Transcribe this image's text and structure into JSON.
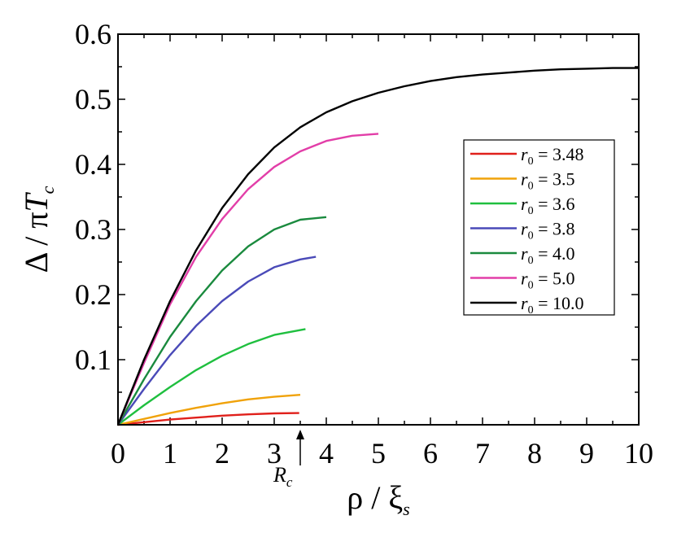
{
  "chart_data": {
    "type": "line",
    "xlabel": "ρ / ξs",
    "ylabel": "Δ / πTc",
    "xlim": [
      0,
      10
    ],
    "ylim": [
      0,
      0.6
    ],
    "x_ticks": [
      "0",
      "1",
      "2",
      "3",
      "4",
      "5",
      "6",
      "7",
      "8",
      "9",
      "10"
    ],
    "y_ticks": [
      "0.1",
      "0.2",
      "0.3",
      "0.4",
      "0.5",
      "0.6"
    ],
    "grid": false,
    "legend_position": "right",
    "annotation": {
      "text": "Rc",
      "x": 3.5
    },
    "series": [
      {
        "name": "r0 = 3.48",
        "color": "#e0201b",
        "points": [
          [
            0,
            0
          ],
          [
            0.5,
            0.004
          ],
          [
            1,
            0.008
          ],
          [
            1.5,
            0.011
          ],
          [
            2,
            0.014
          ],
          [
            2.5,
            0.016
          ],
          [
            3,
            0.0175
          ],
          [
            3.48,
            0.018
          ]
        ]
      },
      {
        "name": "r0 = 3.5",
        "color": "#f0a20a",
        "points": [
          [
            0,
            0
          ],
          [
            0.5,
            0.009
          ],
          [
            1,
            0.018
          ],
          [
            1.5,
            0.026
          ],
          [
            2,
            0.033
          ],
          [
            2.5,
            0.039
          ],
          [
            3,
            0.043
          ],
          [
            3.5,
            0.046
          ]
        ]
      },
      {
        "name": "r0 = 3.6",
        "color": "#1fbf3f",
        "points": [
          [
            0,
            0
          ],
          [
            0.5,
            0.03
          ],
          [
            1,
            0.058
          ],
          [
            1.5,
            0.084
          ],
          [
            2,
            0.106
          ],
          [
            2.5,
            0.124
          ],
          [
            3,
            0.138
          ],
          [
            3.6,
            0.147
          ]
        ]
      },
      {
        "name": "r0 = 3.8",
        "color": "#4a4ab8",
        "points": [
          [
            0,
            0
          ],
          [
            0.5,
            0.055
          ],
          [
            1,
            0.107
          ],
          [
            1.5,
            0.152
          ],
          [
            2,
            0.19
          ],
          [
            2.5,
            0.22
          ],
          [
            3,
            0.242
          ],
          [
            3.5,
            0.254
          ],
          [
            3.8,
            0.258
          ]
        ]
      },
      {
        "name": "r0 = 4.0",
        "color": "#1a8a3e",
        "points": [
          [
            0,
            0
          ],
          [
            0.5,
            0.07
          ],
          [
            1,
            0.135
          ],
          [
            1.5,
            0.19
          ],
          [
            2,
            0.237
          ],
          [
            2.5,
            0.274
          ],
          [
            3,
            0.3
          ],
          [
            3.5,
            0.315
          ],
          [
            4.0,
            0.319
          ]
        ]
      },
      {
        "name": "r0 = 5.0",
        "color": "#e23ea8",
        "points": [
          [
            0,
            0
          ],
          [
            0.5,
            0.095
          ],
          [
            1,
            0.185
          ],
          [
            1.5,
            0.258
          ],
          [
            2,
            0.316
          ],
          [
            2.5,
            0.362
          ],
          [
            3,
            0.396
          ],
          [
            3.5,
            0.42
          ],
          [
            4,
            0.436
          ],
          [
            4.5,
            0.444
          ],
          [
            5.0,
            0.447
          ]
        ]
      },
      {
        "name": "r0 = 10.0",
        "color": "#000000",
        "points": [
          [
            0,
            0
          ],
          [
            0.5,
            0.1
          ],
          [
            1,
            0.19
          ],
          [
            1.5,
            0.268
          ],
          [
            2,
            0.333
          ],
          [
            2.5,
            0.385
          ],
          [
            3,
            0.426
          ],
          [
            3.5,
            0.457
          ],
          [
            4,
            0.48
          ],
          [
            4.5,
            0.497
          ],
          [
            5,
            0.51
          ],
          [
            5.5,
            0.52
          ],
          [
            6,
            0.528
          ],
          [
            6.5,
            0.534
          ],
          [
            7,
            0.538
          ],
          [
            7.5,
            0.541
          ],
          [
            8,
            0.544
          ],
          [
            8.5,
            0.546
          ],
          [
            9,
            0.547
          ],
          [
            9.5,
            0.548
          ],
          [
            10,
            0.548
          ]
        ]
      }
    ]
  }
}
